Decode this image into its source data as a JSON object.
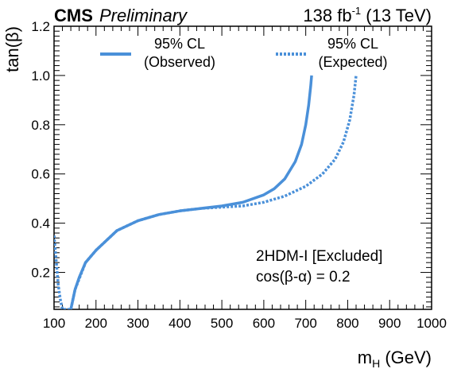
{
  "header": {
    "experiment": "CMS",
    "status": "Preliminary",
    "lumi_value": "138 fb",
    "lumi_exp": "-1",
    "energy": " (13 TeV)"
  },
  "annotation": {
    "line1": "2HDM-I [Excluded]",
    "line2": "cos(β-α) = 0.2"
  },
  "chart_data": {
    "type": "line",
    "xlabel_main": "m",
    "xlabel_sub": "H",
    "xlabel_unit": " (GeV)",
    "ylabel": "tan(β)",
    "xlim": [
      100,
      1000
    ],
    "ylim": [
      0.05,
      1.2
    ],
    "xticks": [
      "100",
      "200",
      "300",
      "400",
      "500",
      "600",
      "700",
      "800",
      "900",
      "1000"
    ],
    "yticks": [
      "0.2",
      "0.4",
      "0.6",
      "0.8",
      "1.0",
      "1.2"
    ],
    "grid": false,
    "legend_position": "top",
    "series": [
      {
        "name_line1": "95% CL",
        "name_line2": "(Observed)",
        "style": "solid",
        "color": "#4a90d9",
        "x": [
          140,
          145,
          150,
          160,
          175,
          200,
          225,
          250,
          300,
          350,
          400,
          450,
          500,
          550,
          600,
          625,
          650,
          675,
          690,
          700,
          707,
          712,
          714
        ],
        "y": [
          0.05,
          0.09,
          0.13,
          0.18,
          0.24,
          0.29,
          0.33,
          0.37,
          0.41,
          0.435,
          0.45,
          0.46,
          0.47,
          0.485,
          0.515,
          0.54,
          0.58,
          0.65,
          0.72,
          0.8,
          0.88,
          0.96,
          1.0
        ]
      },
      {
        "name_line1": "95% CL",
        "name_line2": "(Expected)",
        "style": "dotted",
        "color": "#4a90d9",
        "x": [
          100,
          105,
          110,
          115,
          120,
          140,
          150,
          175,
          200,
          250,
          300,
          350,
          400,
          450,
          500,
          550,
          600,
          650,
          700,
          740,
          770,
          790,
          805,
          815,
          820
        ],
        "y": [
          0.35,
          0.25,
          0.15,
          0.09,
          0.05,
          0.05,
          0.13,
          0.24,
          0.29,
          0.37,
          0.41,
          0.435,
          0.45,
          0.46,
          0.465,
          0.47,
          0.485,
          0.51,
          0.55,
          0.6,
          0.66,
          0.73,
          0.82,
          0.92,
          1.0
        ]
      }
    ]
  }
}
